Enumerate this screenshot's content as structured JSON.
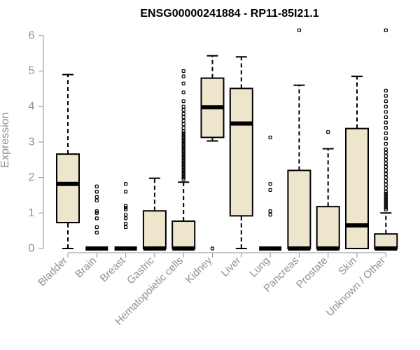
{
  "chart_data": {
    "type": "boxplot",
    "title": "ENSG00000241884 - RP11-85I21.1",
    "xlabel": "",
    "ylabel": "Expression",
    "ylim": [
      0,
      6.3
    ],
    "yticks": [
      0,
      1,
      2,
      3,
      4,
      5,
      6
    ],
    "box_fill": "#ede6cd",
    "categories": [
      "Bladder",
      "Brain",
      "Breast",
      "Gastric",
      "Hematopoietic cells",
      "Kidney",
      "Liver",
      "Lung",
      "Pancreas",
      "Prostate",
      "Skin",
      "Unknown / Other"
    ],
    "boxes": [
      {
        "label": "Bladder",
        "whisker_low": 0,
        "q1": 0.73,
        "median": 1.82,
        "q3": 2.66,
        "whisker_high": 4.9,
        "outliers": []
      },
      {
        "label": "Brain",
        "whisker_low": 0,
        "q1": 0,
        "median": 0,
        "q3": 0,
        "whisker_high": 0,
        "outliers": [
          0.45,
          0.6,
          0.85,
          1.0,
          1.05,
          1.35,
          1.45,
          1.6,
          1.75
        ]
      },
      {
        "label": "Breast",
        "whisker_low": 0,
        "q1": 0,
        "median": 0,
        "q3": 0,
        "whisker_high": 0,
        "outliers": [
          0.6,
          0.7,
          0.85,
          0.95,
          1.1,
          1.15,
          1.2,
          1.6,
          1.82
        ]
      },
      {
        "label": "Gastric",
        "whisker_low": 0,
        "q1": 0,
        "median": 0,
        "q3": 1.06,
        "whisker_high": 1.98,
        "outliers": []
      },
      {
        "label": "Hematopoietic cells",
        "whisker_low": 0,
        "q1": 0,
        "median": 0,
        "q3": 0.77,
        "whisker_high": 1.87,
        "outliers": [
          1.95,
          2.0,
          2.05,
          2.1,
          2.15,
          2.2,
          2.25,
          2.3,
          2.35,
          2.4,
          2.45,
          2.5,
          2.55,
          2.6,
          2.65,
          2.7,
          2.75,
          2.8,
          2.85,
          2.9,
          2.95,
          3.0,
          3.05,
          3.1,
          3.15,
          3.2,
          3.25,
          3.3,
          3.4,
          3.5,
          3.6,
          3.7,
          3.8,
          3.9,
          4.0,
          4.15,
          4.4,
          4.65,
          4.85,
          5.0
        ]
      },
      {
        "label": "Kidney",
        "whisker_low": 3.03,
        "q1": 3.13,
        "median": 3.98,
        "q3": 4.8,
        "whisker_high": 5.43,
        "outliers": [
          0
        ]
      },
      {
        "label": "Liver",
        "whisker_low": 0,
        "q1": 0.92,
        "median": 3.52,
        "q3": 4.51,
        "whisker_high": 5.4,
        "outliers": []
      },
      {
        "label": "Lung",
        "whisker_low": 0,
        "q1": 0,
        "median": 0,
        "q3": 0,
        "whisker_high": 0,
        "outliers": [
          0.95,
          1.05,
          1.65,
          1.82,
          3.13
        ]
      },
      {
        "label": "Pancreas",
        "whisker_low": 0,
        "q1": 0,
        "median": 0,
        "q3": 2.2,
        "whisker_high": 4.6,
        "outliers": [
          6.15
        ]
      },
      {
        "label": "Prostate",
        "whisker_low": 0,
        "q1": 0,
        "median": 0,
        "q3": 1.18,
        "whisker_high": 2.81,
        "outliers": [
          3.28
        ]
      },
      {
        "label": "Skin",
        "whisker_low": 0,
        "q1": 0,
        "median": 0.65,
        "q3": 3.38,
        "whisker_high": 4.85,
        "outliers": []
      },
      {
        "label": "Unknown / Other",
        "whisker_low": 0,
        "q1": 0,
        "median": 0,
        "q3": 0.41,
        "whisker_high": 1.0,
        "outliers": [
          1.1,
          1.15,
          1.2,
          1.25,
          1.3,
          1.35,
          1.4,
          1.45,
          1.5,
          1.55,
          1.6,
          1.7,
          1.8,
          1.9,
          2.0,
          2.1,
          2.2,
          2.3,
          2.4,
          2.5,
          2.6,
          2.7,
          2.8,
          2.95,
          3.1,
          3.25,
          3.4,
          3.55,
          3.7,
          3.85,
          4.0,
          4.15,
          4.3,
          4.45,
          6.15
        ]
      }
    ]
  }
}
